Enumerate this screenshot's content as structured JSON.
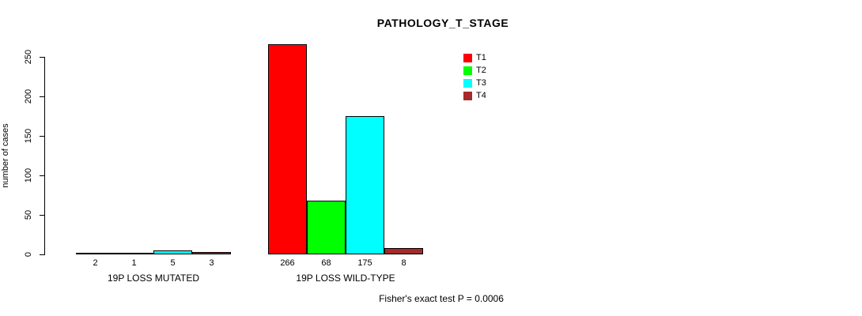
{
  "chart_data": {
    "type": "bar",
    "title": "PATHOLOGY_T_STAGE",
    "ylabel": "number of cases",
    "xlabel": "",
    "ylim": [
      0,
      250
    ],
    "yticks": [
      0,
      50,
      100,
      150,
      200,
      250
    ],
    "grid": false,
    "legend_position": "top-right-inside",
    "categories": [
      "19P LOSS MUTATED",
      "19P LOSS WILD-TYPE"
    ],
    "series": [
      {
        "name": "T1",
        "color": "#FF0000",
        "values": [
          2,
          266
        ]
      },
      {
        "name": "T2",
        "color": "#00FF00",
        "values": [
          1,
          68
        ]
      },
      {
        "name": "T3",
        "color": "#00FFFF",
        "values": [
          5,
          175
        ]
      },
      {
        "name": "T4",
        "color": "#A52A2A",
        "values": [
          3,
          8
        ]
      }
    ],
    "bar_value_labels": [
      [
        "2",
        "1",
        "5",
        "3"
      ],
      [
        "266",
        "68",
        "175",
        "8"
      ]
    ],
    "annotation": "Fisher's exact test P = 0.0006"
  }
}
